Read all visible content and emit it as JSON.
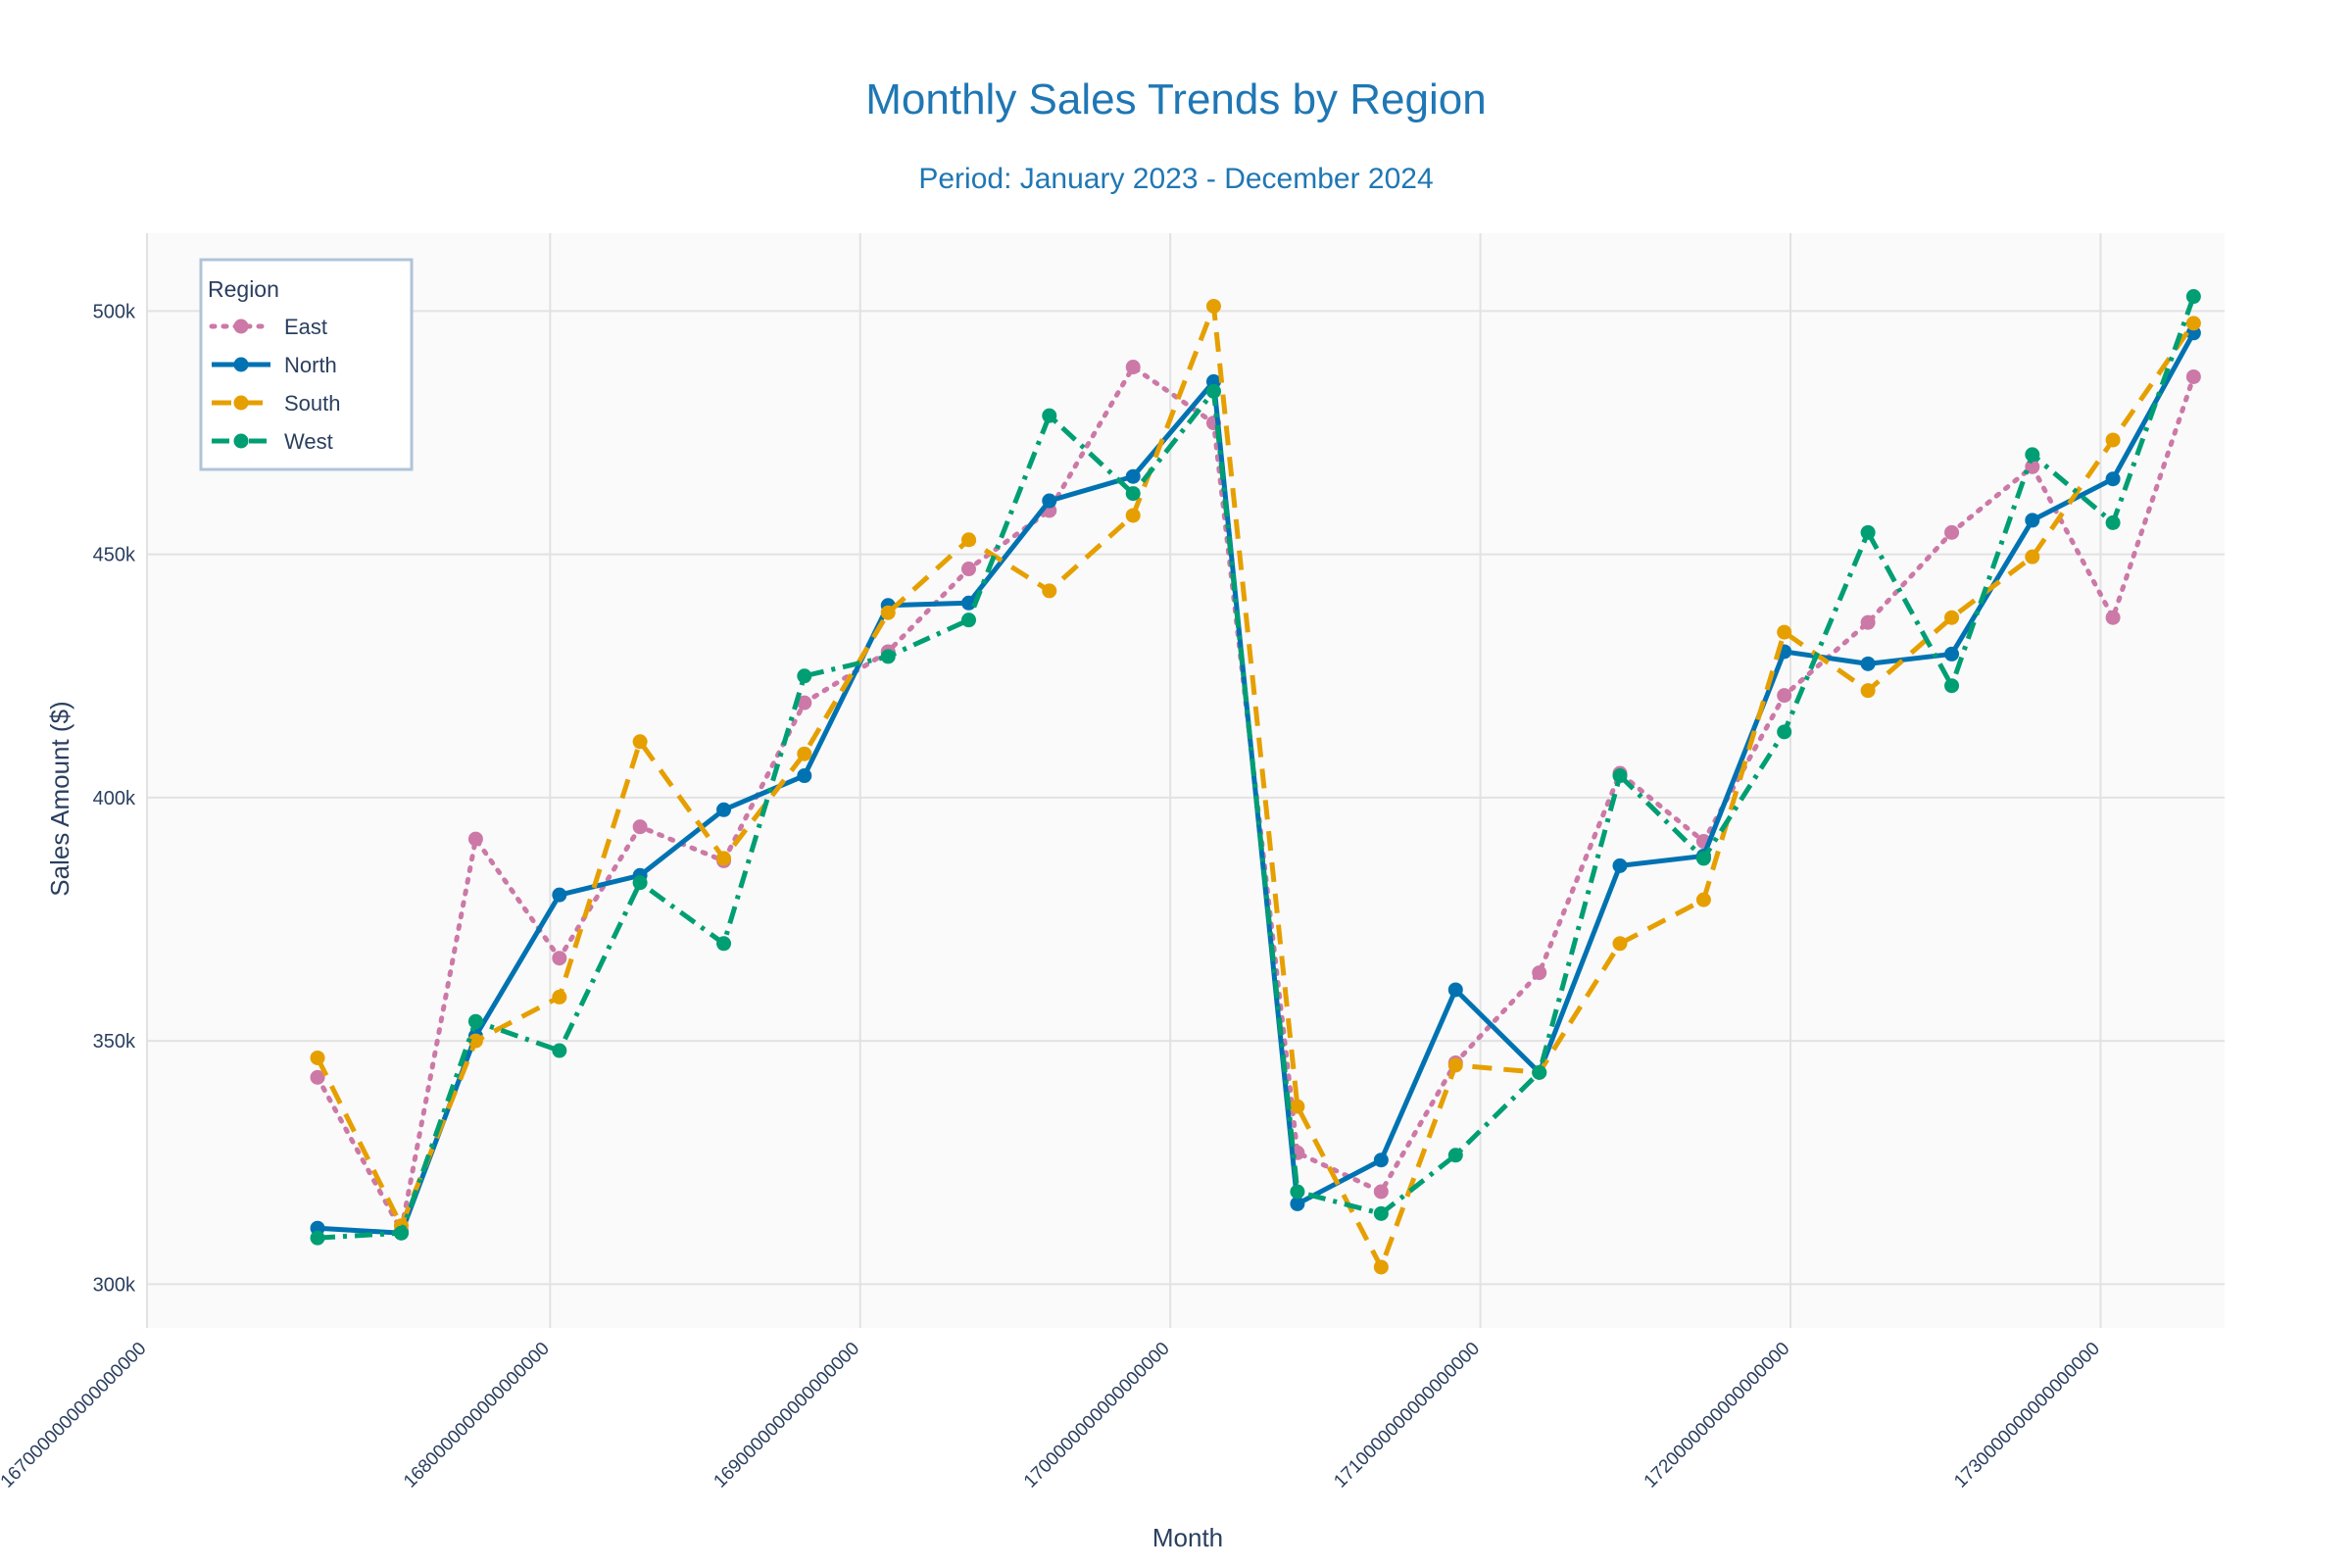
{
  "chart_data": {
    "type": "line",
    "title": "Monthly Sales Trends by Region",
    "subtitle": "Period: January 2023 - December 2024",
    "xlabel": "Month",
    "ylabel": "Sales Amount ($)",
    "xlim": [
      1667000000000000000,
      1734000000000000000
    ],
    "ylim": [
      291000,
      516000
    ],
    "x_ticks": [
      1667000000000000000,
      1680000000000000000,
      1690000000000000000,
      1700000000000000000,
      1710000000000000000,
      1720000000000000000,
      1730000000000000000
    ],
    "x_tick_labels": [
      "1670000000000000000",
      "1680000000000000000",
      "1690000000000000000",
      "1700000000000000000",
      "1710000000000000000",
      "1720000000000000000",
      "1730000000000000000"
    ],
    "y_ticks": [
      300000,
      350000,
      400000,
      450000,
      500000
    ],
    "y_tick_labels": [
      "300k",
      "350k",
      "400k",
      "450k",
      "500k"
    ],
    "grid": true,
    "legend": {
      "title": "Region",
      "placement": "top-left"
    },
    "x": [
      1672500000000000000,
      1675200000000000000,
      1677600000000000000,
      1680300000000000000,
      1682900000000000000,
      1685600000000000000,
      1688200000000000000,
      1690900000000000000,
      1693500000000000000,
      1696100000000000000,
      1698800000000000000,
      1701400000000000000,
      1704100000000000000,
      1706800000000000000,
      1709200000000000000,
      1711900000000000000,
      1714500000000000000,
      1717200000000000000,
      1719800000000000000,
      1722500000000000000,
      1725200000000000000,
      1727800000000000000,
      1730400000000000000,
      1733000000000000000
    ],
    "series": [
      {
        "name": "East",
        "color": "#CC79A7",
        "dash": "dot",
        "values": [
          342500,
          311000,
          391500,
          367000,
          394000,
          387000,
          419500,
          430000,
          447000,
          459000,
          488500,
          477000,
          327000,
          319000,
          345500,
          364000,
          405000,
          391000,
          421000,
          436000,
          454500,
          468000,
          437000,
          486500
        ]
      },
      {
        "name": "North",
        "color": "#0072B2",
        "dash": "solid",
        "values": [
          311500,
          310500,
          351000,
          380000,
          384000,
          397500,
          404500,
          439500,
          440000,
          461000,
          466000,
          485500,
          316500,
          325500,
          360500,
          343500,
          386000,
          388000,
          430000,
          427500,
          429500,
          457000,
          465500,
          495500
        ]
      },
      {
        "name": "South",
        "color": "#E69F00",
        "dash": "dash",
        "values": [
          346500,
          312000,
          350000,
          359000,
          411500,
          387500,
          409000,
          438000,
          453000,
          442500,
          458000,
          501000,
          336500,
          303500,
          345000,
          343500,
          370000,
          379000,
          434000,
          422000,
          437000,
          449500,
          473500,
          497500
        ]
      },
      {
        "name": "West",
        "color": "#009E73",
        "dash": "dashdot",
        "values": [
          309500,
          310500,
          354000,
          348000,
          382500,
          370000,
          425000,
          429000,
          436500,
          478500,
          462500,
          483500,
          319000,
          314500,
          326500,
          343500,
          404500,
          387500,
          413500,
          454500,
          423000,
          470500,
          456500,
          503000
        ]
      }
    ]
  }
}
